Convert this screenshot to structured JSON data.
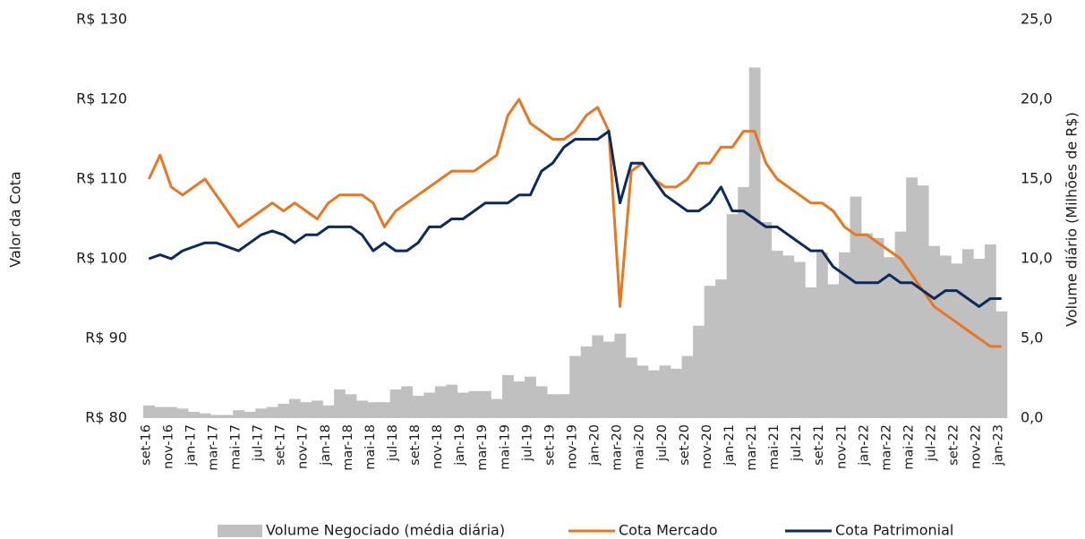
{
  "chart_data": {
    "type": "bar-line",
    "y_label": "Valor da Cota",
    "y2_label": "Volume diário (Milhões de R$)",
    "categories": [
      "set-16",
      null,
      "nov-16",
      null,
      "jan-17",
      null,
      "mar-17",
      null,
      "mai-17",
      null,
      "jul-17",
      null,
      "set-17",
      null,
      "nov-17",
      null,
      "jan-18",
      null,
      "mar-18",
      null,
      "mai-18",
      null,
      "jul-18",
      null,
      "set-18",
      null,
      "nov-18",
      null,
      "jan-19",
      null,
      "mar-19",
      null,
      "mai-19",
      null,
      "jul-19",
      null,
      "set-19",
      null,
      "nov-19",
      null,
      "jan-20",
      null,
      "mar-20",
      null,
      "mai-20",
      null,
      "jul-20",
      null,
      "set-20",
      null,
      "nov-20",
      null,
      "jan-21",
      null,
      "mar-21",
      null,
      "mai-21",
      null,
      "jul-21",
      null,
      "set-21",
      null,
      "nov-21",
      null,
      "jan-22",
      null,
      "mar-22",
      null,
      "mai-22",
      null,
      "jul-22",
      null,
      "set-22",
      null,
      "nov-22",
      null,
      "jan-23"
    ],
    "series": [
      {
        "name": "Volume Negociado (média diária)",
        "kind": "bar",
        "axis": "y2",
        "color": "#c0c0c0",
        "values": [
          0.8,
          0.7,
          0.7,
          0.6,
          0.4,
          0.3,
          0.2,
          0.2,
          0.5,
          0.4,
          0.6,
          0.7,
          0.9,
          1.2,
          1.0,
          1.1,
          0.8,
          1.8,
          1.5,
          1.1,
          1.0,
          1.0,
          1.8,
          2.0,
          1.4,
          1.6,
          2.0,
          2.1,
          1.6,
          1.7,
          1.7,
          1.2,
          2.7,
          2.3,
          2.6,
          2.0,
          1.5,
          1.5,
          3.9,
          4.5,
          5.2,
          4.8,
          5.3,
          3.8,
          3.3,
          3.0,
          3.3,
          3.1,
          3.9,
          5.8,
          8.3,
          8.7,
          12.8,
          14.5,
          22.0,
          12.3,
          10.5,
          10.2,
          9.8,
          8.2,
          10.4,
          8.4,
          10.4,
          13.9,
          11.6,
          11.3,
          10.1,
          11.7,
          15.1,
          14.6,
          10.8,
          10.2,
          9.7,
          10.6,
          10.0,
          10.9,
          6.7
        ]
      },
      {
        "name": "Cota Mercado",
        "kind": "line",
        "color": "#e87722",
        "values": [
          110,
          113,
          109,
          108,
          109,
          110,
          108,
          106,
          104,
          105,
          106,
          107,
          106,
          107,
          106,
          105,
          107,
          108,
          108,
          108,
          107,
          104,
          106,
          107,
          108,
          109,
          110,
          111,
          111,
          111,
          112,
          113,
          118,
          120,
          117,
          116,
          115,
          115,
          116,
          118,
          119,
          116,
          94,
          111,
          112,
          110,
          109,
          109,
          110,
          112,
          112,
          114,
          114,
          116,
          116,
          112,
          110,
          109,
          108,
          107,
          107,
          106,
          104,
          103,
          103,
          102,
          101,
          100,
          98,
          96,
          94,
          93,
          92,
          91,
          90,
          89,
          89
        ]
      },
      {
        "name": "Cota Patrimonial",
        "kind": "line",
        "color": "#0b2a5e",
        "values": [
          100,
          100.5,
          100,
          101,
          101.5,
          102,
          102,
          101.5,
          101,
          102,
          103,
          103.5,
          103,
          102,
          103,
          103,
          104,
          104,
          104,
          103,
          101,
          102,
          101,
          101,
          102,
          104,
          104,
          105,
          105,
          106,
          107,
          107,
          107,
          108,
          108,
          111,
          112,
          114,
          115,
          115,
          115,
          116,
          107,
          112,
          112,
          110,
          108,
          107,
          106,
          106,
          107,
          109,
          106,
          106,
          105,
          104,
          104,
          103,
          102,
          101,
          101,
          99,
          98,
          97,
          97,
          97,
          98,
          97,
          97,
          96,
          95,
          96,
          96,
          95,
          94,
          95,
          95
        ]
      }
    ],
    "ylim": [
      80,
      130
    ],
    "yticks": [
      {
        "value": 80,
        "label": "R$ 80"
      },
      {
        "value": 90,
        "label": "R$ 90"
      },
      {
        "value": 100,
        "label": "R$ 100"
      },
      {
        "value": 110,
        "label": "R$ 110"
      },
      {
        "value": 120,
        "label": "R$ 120"
      },
      {
        "value": 130,
        "label": "R$ 130"
      }
    ],
    "y2lim": [
      0,
      25
    ],
    "y2ticks": [
      {
        "value": 0,
        "label": "0,0"
      },
      {
        "value": 5,
        "label": "5,0"
      },
      {
        "value": 10,
        "label": "10,0"
      },
      {
        "value": 15,
        "label": "15,0"
      },
      {
        "value": 20,
        "label": "20,0"
      },
      {
        "value": 25,
        "label": "25,0"
      }
    ],
    "legend": "bottom"
  }
}
